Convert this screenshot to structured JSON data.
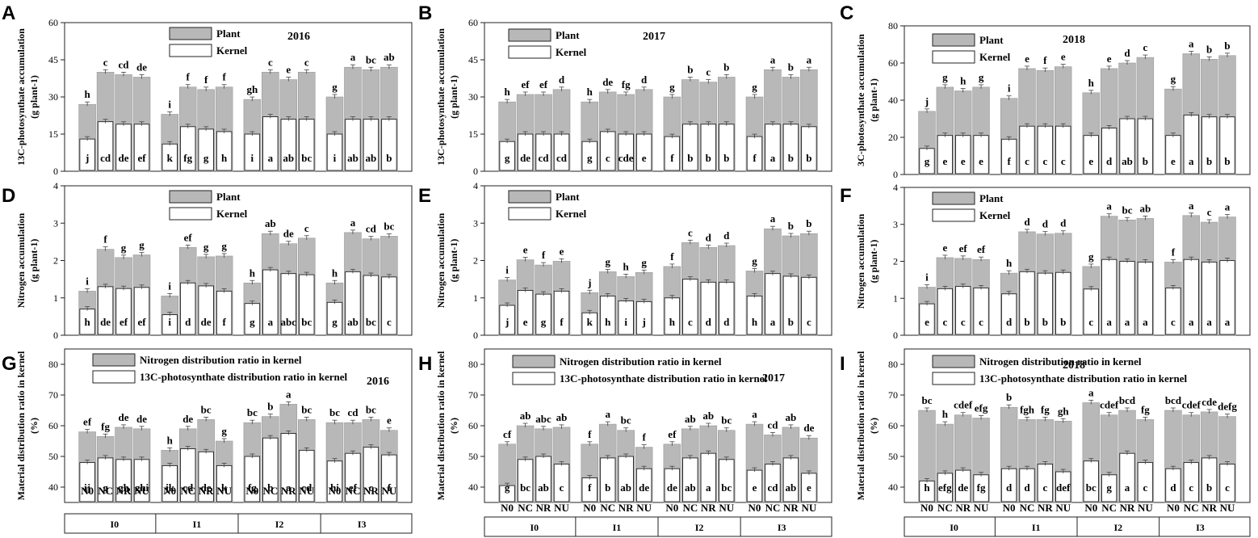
{
  "colors": {
    "plant": "#b8b8b8",
    "kernel": "#ffffff",
    "stroke": "#222222"
  },
  "treatments": [
    "N0",
    "NC",
    "NR",
    "NU"
  ],
  "irrigation_groups": [
    "I0",
    "I1",
    "I2",
    "I3"
  ],
  "chart_data": [
    {
      "id": "A",
      "type": "bar",
      "year": "2016",
      "ylabel_lines": [
        "13C-photosynthate accumulation",
        "(g plant-1)"
      ],
      "ylim": [
        0,
        60
      ],
      "yticks": [
        0,
        15,
        30,
        45,
        60
      ],
      "legend": [
        "Plant",
        "Kernel"
      ],
      "show_x_labels": false,
      "outer": [
        27,
        40,
        39,
        38,
        23,
        34,
        33,
        34,
        29,
        40,
        37,
        40,
        30,
        42,
        41,
        42
      ],
      "inner": [
        13,
        20,
        19,
        19,
        11,
        18,
        17,
        16,
        15,
        22,
        21,
        21,
        15,
        21,
        21,
        21
      ],
      "top_labels": [
        "h",
        "c",
        "cd",
        "de",
        "i",
        "f",
        "f",
        "f",
        "gh",
        "c",
        "e",
        "c",
        "g",
        "a",
        "bc",
        "ab"
      ],
      "in_labels": [
        "j",
        "cd",
        "de",
        "ef",
        "k",
        "fg",
        "g",
        "h",
        "i",
        "a",
        "ab",
        "bc",
        "i",
        "ab",
        "ab",
        "b"
      ]
    },
    {
      "id": "B",
      "type": "bar",
      "year": "2017",
      "ylabel_lines": [
        "13C-photosynthate accumulation",
        "(g plant-1)"
      ],
      "ylim": [
        0,
        60
      ],
      "yticks": [
        0,
        15,
        30,
        45,
        60
      ],
      "legend": [
        "Plant",
        "Kernel"
      ],
      "show_x_labels": false,
      "outer": [
        28,
        31,
        31,
        33,
        28,
        32,
        31,
        33,
        30,
        37,
        36,
        38,
        30,
        41,
        38,
        41
      ],
      "inner": [
        12,
        15,
        15,
        15,
        12,
        16,
        15,
        15,
        14,
        19,
        19,
        19,
        14,
        19,
        19,
        18
      ],
      "top_labels": [
        "h",
        "ef",
        "ef",
        "d",
        "h",
        "de",
        "fg",
        "d",
        "g",
        "b",
        "c",
        "b",
        "g",
        "a",
        "b",
        "a"
      ],
      "in_labels": [
        "g",
        "de",
        "cd",
        "cd",
        "g",
        "c",
        "cde",
        "e",
        "f",
        "b",
        "b",
        "b",
        "f",
        "a",
        "b",
        "b"
      ]
    },
    {
      "id": "C",
      "type": "bar",
      "year": "2018",
      "ylabel_lines": [
        "3C-photosynthate accumulation",
        "(g plant-1)"
      ],
      "ylim": [
        0,
        80
      ],
      "yticks": [
        0,
        20,
        40,
        60,
        80
      ],
      "legend": [
        "Plant",
        "Kernel"
      ],
      "show_x_labels": false,
      "outer": [
        34,
        47,
        45,
        47,
        41,
        57,
        56,
        58,
        44,
        57,
        60,
        63,
        46,
        65,
        62,
        64
      ],
      "inner": [
        14,
        21,
        21,
        21,
        19,
        26,
        26,
        26,
        21,
        25,
        30,
        30,
        21,
        32,
        31,
        31
      ],
      "top_labels": [
        "j",
        "g",
        "h",
        "g",
        "i",
        "e",
        "f",
        "e",
        "h",
        "e",
        "d",
        "c",
        "g",
        "a",
        "b",
        "b"
      ],
      "in_labels": [
        "g",
        "e",
        "e",
        "e",
        "f",
        "c",
        "c",
        "c",
        "e",
        "d",
        "ab",
        "b",
        "e",
        "a",
        "b",
        "b"
      ]
    },
    {
      "id": "D",
      "type": "bar",
      "year": "",
      "ylabel_lines": [
        "Nitrogen accumulation",
        "(g plant-1)"
      ],
      "ylim": [
        0,
        4
      ],
      "yticks": [
        0,
        1,
        2,
        3,
        4
      ],
      "legend": [
        "Plant",
        "Kernel"
      ],
      "show_x_labels": false,
      "outer": [
        1.18,
        2.3,
        2.08,
        2.15,
        1.05,
        2.35,
        2.1,
        2.12,
        1.4,
        2.72,
        2.45,
        2.6,
        1.4,
        2.75,
        2.58,
        2.65
      ],
      "inner": [
        0.7,
        1.3,
        1.25,
        1.28,
        0.55,
        1.4,
        1.32,
        1.18,
        0.85,
        1.75,
        1.65,
        1.62,
        0.88,
        1.7,
        1.6,
        1.56
      ],
      "top_labels": [
        "i",
        "f",
        "g",
        "g",
        "i",
        "ef",
        "g",
        "g",
        "h",
        "ab",
        "de",
        "c",
        "h",
        "a",
        "cd",
        "bc"
      ],
      "in_labels": [
        "h",
        "de",
        "ef",
        "ef",
        "i",
        "d",
        "de",
        "f",
        "g",
        "a",
        "abc",
        "bc",
        "g",
        "ab",
        "bc",
        "c"
      ]
    },
    {
      "id": "E",
      "type": "bar",
      "year": "",
      "ylabel_lines": [
        "Nitrogen accumulation",
        "(g plant-1)"
      ],
      "ylim": [
        0,
        4
      ],
      "yticks": [
        0,
        1,
        2,
        3,
        4
      ],
      "legend": [
        "Plant",
        "Kernel"
      ],
      "show_x_labels": false,
      "outer": [
        1.48,
        2.02,
        1.88,
        1.98,
        1.14,
        1.7,
        1.57,
        1.68,
        1.84,
        2.48,
        2.35,
        2.4,
        1.72,
        2.85,
        2.66,
        2.72
      ],
      "inner": [
        0.8,
        1.2,
        1.1,
        1.18,
        0.6,
        1.05,
        0.92,
        0.9,
        1.0,
        1.5,
        1.42,
        1.42,
        1.05,
        1.65,
        1.58,
        1.55
      ],
      "top_labels": [
        "i",
        "e",
        "f",
        "e",
        "j",
        "g",
        "h",
        "g",
        "f",
        "c",
        "d",
        "d",
        "g",
        "a",
        "b",
        "b"
      ],
      "in_labels": [
        "j",
        "e",
        "g",
        "f",
        "k",
        "h",
        "i",
        "j",
        "h",
        "c",
        "d",
        "d",
        "h",
        "a",
        "b",
        "c"
      ]
    },
    {
      "id": "F",
      "type": "bar",
      "year": "",
      "ylabel_lines": [
        "Nitrogen accumulation",
        "(g plant-1)"
      ],
      "ylim": [
        0,
        4
      ],
      "yticks": [
        0,
        1,
        2,
        3,
        4
      ],
      "legend": [
        "Plant",
        "Kernel"
      ],
      "show_x_labels": false,
      "outer": [
        1.3,
        2.1,
        2.08,
        2.05,
        1.68,
        2.8,
        2.74,
        2.76,
        1.86,
        3.22,
        3.12,
        3.16,
        1.98,
        3.24,
        3.06,
        3.2
      ],
      "inner": [
        0.85,
        1.26,
        1.32,
        1.28,
        1.12,
        1.72,
        1.68,
        1.7,
        1.25,
        2.05,
        2.0,
        1.98,
        1.28,
        2.05,
        1.98,
        2.02
      ],
      "top_labels": [
        "i",
        "e",
        "ef",
        "ef",
        "h",
        "d",
        "d",
        "d",
        "g",
        "a",
        "bc",
        "ab",
        "f",
        "a",
        "c",
        "a"
      ],
      "in_labels": [
        "e",
        "c",
        "c",
        "c",
        "d",
        "b",
        "b",
        "b",
        "c",
        "a",
        "a",
        "a",
        "c",
        "a",
        "a",
        "a"
      ]
    },
    {
      "id": "G",
      "type": "bar",
      "year": "2016",
      "ylabel_lines": [
        "Material distribution ratio in kernel",
        "(%)"
      ],
      "ylim": [
        35,
        85
      ],
      "yticks": [
        40,
        50,
        60,
        70,
        80
      ],
      "legend": [
        "Nitrogen distribution ratio in kernel",
        "13C-photosynthate distribution ratio in kernel"
      ],
      "show_x_labels": true,
      "outer": [
        58,
        56.5,
        59.5,
        59,
        52,
        59,
        62,
        55,
        61,
        63,
        67,
        62,
        61,
        61,
        62,
        58.5
      ],
      "inner": [
        48,
        49.5,
        49,
        49,
        47,
        52.5,
        51.5,
        47,
        50,
        56,
        57.5,
        52,
        48.5,
        51,
        53,
        50.5
      ],
      "top_labels": [
        "ef",
        "fg",
        "de",
        "de",
        "h",
        "de",
        "bc",
        "g",
        "bc",
        "b",
        "a",
        "bc",
        "bc",
        "cd",
        "bc",
        "e"
      ],
      "in_labels": [
        "ij",
        "g",
        "gh",
        "ghi",
        "jk",
        "cd",
        "de",
        "k",
        "fg",
        "b",
        "a",
        "cd",
        "hi",
        "ef",
        "c",
        "f"
      ]
    },
    {
      "id": "H",
      "type": "bar",
      "year": "2017",
      "ylabel_lines": [
        "Material distribution ratio in kernel",
        "(%)"
      ],
      "ylim": [
        35,
        85
      ],
      "yticks": [
        40,
        50,
        60,
        70,
        80
      ],
      "legend": [
        "Nitrogen distribution ratio in kernel",
        "13C-photosynthate distribution ratio in kernel"
      ],
      "show_x_labels": true,
      "outer": [
        54,
        60,
        59,
        59.5,
        54,
        60.5,
        58.5,
        53,
        54,
        59,
        60,
        58.5,
        60.5,
        57,
        59.5,
        56
      ],
      "inner": [
        40.5,
        49,
        50,
        47.5,
        43,
        49.5,
        50,
        46,
        46,
        49.5,
        51,
        49,
        45.5,
        47.5,
        49.5,
        44.5
      ],
      "top_labels": [
        "cf",
        "ab",
        "abc",
        "ab",
        "f",
        "a",
        "bc",
        "f",
        "ef",
        "ab",
        "ab",
        "bc",
        "a",
        "cd",
        "ab",
        "de"
      ],
      "in_labels": [
        "g",
        "bc",
        "ab",
        "c",
        "f",
        "b",
        "ab",
        "de",
        "de",
        "ab",
        "a",
        "bc",
        "e",
        "cd",
        "ab",
        "e"
      ]
    },
    {
      "id": "I",
      "type": "bar",
      "year": "2018",
      "ylabel_lines": [
        "Material distribution ratio in kernel",
        "(%)"
      ],
      "ylim": [
        35,
        85
      ],
      "yticks": [
        40,
        50,
        60,
        70,
        80
      ],
      "legend": [
        "Nitrogen distribution ratio in kernel",
        "13C-photosynthate distribution ratio in kernel"
      ],
      "show_x_labels": true,
      "outer": [
        65,
        60.5,
        63.5,
        62.5,
        66,
        62,
        62,
        61.5,
        67.5,
        63.5,
        65,
        62,
        65,
        63.5,
        64.5,
        63
      ],
      "inner": [
        42,
        44.5,
        45.5,
        44,
        46,
        46,
        47.5,
        45,
        48.5,
        44,
        51,
        48,
        46,
        48,
        49.5,
        47.5
      ],
      "top_labels": [
        "bc",
        "h",
        "cdef",
        "efg",
        "b",
        "fgh",
        "fg",
        "gh",
        "a",
        "cdef",
        "bcd",
        "fg",
        "bcd",
        "cdef",
        "cde",
        "defg"
      ],
      "in_labels": [
        "h",
        "efg",
        "de",
        "fg",
        "d",
        "d",
        "c",
        "def",
        "bc",
        "g",
        "a",
        "c",
        "d",
        "c",
        "b",
        "c"
      ]
    }
  ]
}
